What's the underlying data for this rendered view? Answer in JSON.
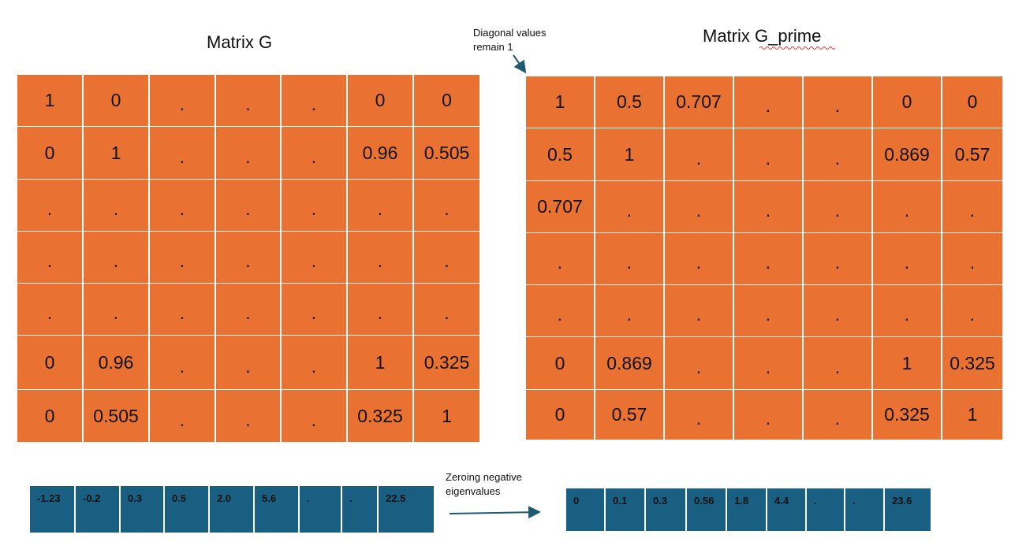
{
  "matrix_g": {
    "title": "Matrix G",
    "rows": [
      [
        "1",
        "0",
        ".",
        ".",
        ".",
        "0",
        "0"
      ],
      [
        "0",
        "1",
        ".",
        ".",
        ".",
        "0.96",
        "0.505"
      ],
      [
        ".",
        ".",
        ".",
        ".",
        ".",
        ".",
        "."
      ],
      [
        ".",
        ".",
        ".",
        ".",
        ".",
        ".",
        "."
      ],
      [
        ".",
        ".",
        ".",
        ".",
        ".",
        ".",
        "."
      ],
      [
        "0",
        "0.96",
        ".",
        ".",
        ".",
        "1",
        "0.325"
      ],
      [
        "0",
        "0.505",
        ".",
        ".",
        ".",
        "0.325",
        "1"
      ]
    ]
  },
  "matrix_g_prime": {
    "title": "Matrix G_prime",
    "rows": [
      [
        "1",
        "0.5",
        "0.707",
        ".",
        ".",
        "0",
        "0"
      ],
      [
        "0.5",
        "1",
        ".",
        ".",
        ".",
        "0.869",
        "0.57"
      ],
      [
        "0.707",
        ".",
        ".",
        ".",
        ".",
        ".",
        "."
      ],
      [
        ".",
        ".",
        ".",
        ".",
        ".",
        ".",
        "."
      ],
      [
        ".",
        ".",
        ".",
        ".",
        ".",
        ".",
        "."
      ],
      [
        "0",
        "0.869",
        ".",
        ".",
        ".",
        "1",
        "0.325"
      ],
      [
        "0",
        "0.57",
        ".",
        ".",
        ".",
        "0.325",
        "1"
      ]
    ]
  },
  "annotations": {
    "diagonal_note_line1": "Diagonal values",
    "diagonal_note_line2": "remain 1",
    "zeroing_note_line1": "Zeroing negative",
    "zeroing_note_line2": "eigenvalues"
  },
  "eigenvalues_before": [
    "-1.23",
    "-0.2",
    "0.3",
    "0.5",
    "2.0",
    "5.6",
    ".",
    ".",
    "22.5"
  ],
  "eigenvalues_after": [
    "0",
    "0.1",
    "0.3",
    "0.56",
    "1.8",
    "4.4",
    ".",
    ".",
    "23.6"
  ],
  "colors": {
    "matrix_fill": "#E97132",
    "vector_fill": "#195F82",
    "arrow": "#1F5A73",
    "spellcheck_underline": "#E03030"
  }
}
